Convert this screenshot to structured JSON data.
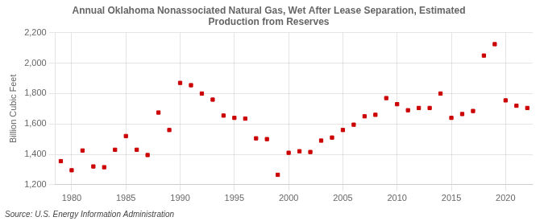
{
  "chart_data": {
    "type": "scatter",
    "title": "Annual Oklahoma Nonassociated Natural Gas, Wet After Lease Separation, Estimated\nProduction from Reserves",
    "ylabel": "Billion Cubic Feet",
    "annotation": "Source: U.S. Energy Information Administration",
    "x": [
      1979,
      1980,
      1981,
      1982,
      1983,
      1984,
      1985,
      1986,
      1987,
      1988,
      1989,
      1990,
      1991,
      1992,
      1993,
      1994,
      1995,
      1996,
      1997,
      1998,
      1999,
      2000,
      2001,
      2002,
      2003,
      2004,
      2005,
      2006,
      2007,
      2008,
      2009,
      2010,
      2011,
      2012,
      2013,
      2014,
      2015,
      2016,
      2017,
      2018,
      2019,
      2020,
      2021,
      2022
    ],
    "values": [
      1355,
      1295,
      1425,
      1320,
      1315,
      1430,
      1520,
      1430,
      1395,
      1675,
      1560,
      1870,
      1855,
      1800,
      1760,
      1655,
      1640,
      1635,
      1505,
      1500,
      1265,
      1410,
      1420,
      1415,
      1490,
      1510,
      1560,
      1595,
      1650,
      1660,
      1770,
      1730,
      1690,
      1705,
      1705,
      1800,
      1640,
      1665,
      1685,
      2050,
      2125,
      1755,
      1720,
      1705
    ],
    "color": "#cc0000",
    "marker": "square",
    "xlim": [
      1978.5,
      2022.5
    ],
    "xticks": [
      1980,
      1985,
      1990,
      1995,
      2000,
      2005,
      2010,
      2015,
      2020
    ],
    "ylim": [
      1200,
      2200
    ],
    "yticks": [
      {
        "value": 1200,
        "label": "1,200"
      },
      {
        "value": 1400,
        "label": "1,400"
      },
      {
        "value": 1600,
        "label": "1,600"
      },
      {
        "value": 1800,
        "label": "1,800"
      },
      {
        "value": 2000,
        "label": "2,000"
      },
      {
        "value": 2200,
        "label": "2,200"
      }
    ],
    "grid": true
  }
}
